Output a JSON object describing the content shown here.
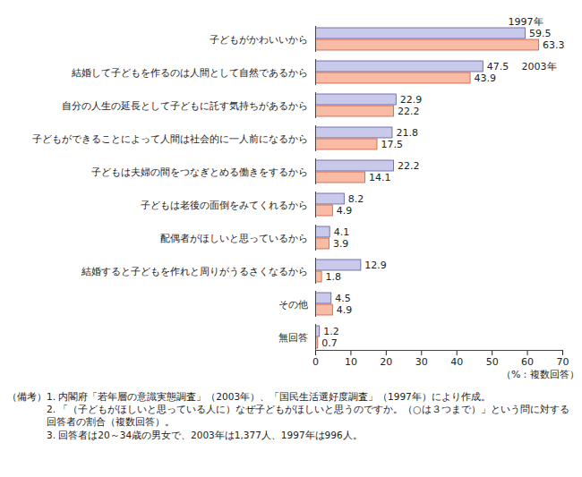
{
  "chart_data": {
    "type": "bar",
    "orientation": "horizontal",
    "categories": [
      "子どもがかわいいから",
      "結婚して子どもを作るのは人間として自然であるから",
      "自分の人生の延長として子どもに託す気持ちがあるから",
      "子どもができることによって人間は社会的に一人前になるから",
      "子どもは夫婦の間をつなぎとめる働きをするから",
      "子どもは老後の面倒をみてくれるから",
      "配偶者がほしいと思っているから",
      "結婚すると子どもを作れと周りがうるさくなるから",
      "その他",
      "無回答"
    ],
    "series": [
      {
        "name": "1997年",
        "color": "#c9c9ec",
        "values": [
          59.5,
          47.5,
          22.9,
          21.8,
          22.2,
          8.2,
          4.1,
          12.9,
          4.5,
          1.2
        ]
      },
      {
        "name": "2003年",
        "color": "#f9bba4",
        "values": [
          63.3,
          43.9,
          22.2,
          17.5,
          14.1,
          4.9,
          3.9,
          1.8,
          4.9,
          0.7
        ]
      }
    ],
    "xlim": [
      0,
      70
    ],
    "xticks": [
      0,
      10,
      20,
      30,
      40,
      50,
      60,
      70
    ],
    "x_label": "（%：複数回答）",
    "data_labels": true,
    "grid": false,
    "notes": [
      "（備考）1. 内閣府「若年層の意識実態調査」（2003年）、「国民生活選好度調査」（1997年）により作成。",
      "2. 「（子どもがほしいと思っている人に）なぜ子どもがほしいと思うのですか。（○は３つまで）」という問に対する回答者の割合（複数回答）。",
      "3. 回答者は20～34歳の男女で、2003年は1,377人、1997年は996人。"
    ]
  }
}
